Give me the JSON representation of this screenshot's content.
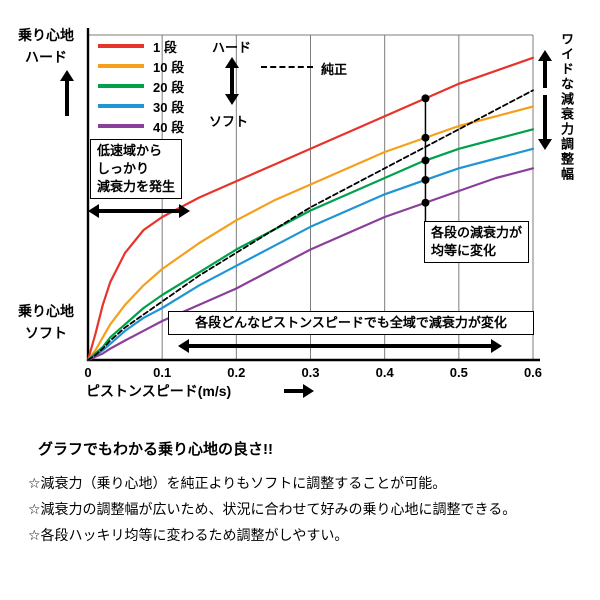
{
  "chart_data": {
    "type": "line",
    "xlabel": "ピストンスピード(m/s)",
    "ylabel_top": [
      "乗り心地",
      "ハード"
    ],
    "ylabel_bottom": [
      "乗り心地",
      "ソフト"
    ],
    "xlim": [
      0,
      0.6
    ],
    "ylim": [
      0,
      100
    ],
    "x_ticks": [
      "0",
      "0.1",
      "0.2",
      "0.3",
      "0.4",
      "0.5",
      "0.6"
    ],
    "grid": "vertical-only",
    "legend_position": "top-left",
    "x": [
      0,
      0.01,
      0.02,
      0.03,
      0.05,
      0.075,
      0.1,
      0.15,
      0.2,
      0.25,
      0.3,
      0.35,
      0.4,
      0.45,
      0.5,
      0.55,
      0.6
    ],
    "series": [
      {
        "name": "1 段",
        "color": "#e6342b",
        "dashed": false,
        "values": [
          0,
          8,
          17,
          24,
          33,
          40,
          44,
          50,
          55,
          60,
          65,
          70,
          75,
          80,
          85,
          89,
          93
        ]
      },
      {
        "name": "10 段",
        "color": "#f5a01c",
        "dashed": false,
        "values": [
          0,
          3,
          7,
          11,
          17,
          23,
          28,
          36,
          43,
          49,
          54,
          59,
          64,
          68,
          72,
          75,
          78
        ]
      },
      {
        "name": "20 段",
        "color": "#00a14b",
        "dashed": false,
        "values": [
          0,
          2,
          4,
          7,
          11,
          16,
          20,
          27,
          34,
          40,
          46,
          51,
          56,
          61,
          65,
          68,
          71
        ]
      },
      {
        "name": "30 段",
        "color": "#2095d3",
        "dashed": false,
        "values": [
          0,
          1.5,
          3,
          5,
          9,
          13,
          16,
          23,
          29,
          35,
          41,
          46,
          51,
          55,
          59,
          62,
          65
        ]
      },
      {
        "name": "40 段",
        "color": "#8a3f9b",
        "dashed": false,
        "values": [
          0,
          1,
          2,
          3.5,
          6,
          9,
          12,
          17,
          22,
          28,
          34,
          39,
          44,
          48,
          52,
          56,
          59
        ]
      },
      {
        "name": "純正",
        "color": "#000000",
        "dashed": true,
        "values": [
          0,
          1.5,
          3.5,
          6,
          10,
          14,
          18,
          26,
          33,
          40,
          47,
          53,
          59,
          65,
          71,
          77,
          83
        ]
      }
    ],
    "marker_x": 0.455
  },
  "legend": {
    "hard": "ハード",
    "soft": "ソフト",
    "stock": "純正"
  },
  "annotations": {
    "low_speed": [
      "低速域から",
      "しっかり",
      "減衰力を発生"
    ],
    "equal_steps": [
      "各段の減衰力が",
      "均等に変化"
    ],
    "full_range": "各段どんなピストンスピードでも全域で減衰力が変化",
    "wide_range": "ワイドな減衰力調整幅"
  },
  "notes": {
    "title": "グラフでもわかる乗り心地の良さ!!",
    "items": [
      "☆減衰力（乗り心地）を純正よりもソフトに調整することが可能。",
      "☆減衰力の調整幅が広いため、状況に合わせて好みの乗り心地に調整できる。",
      "☆各段ハッキリ均等に変わるため調整がしやすい。"
    ]
  }
}
